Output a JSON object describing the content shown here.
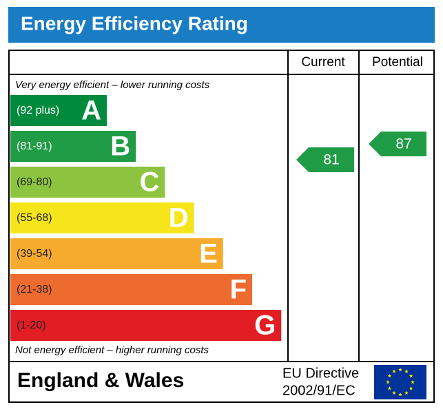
{
  "header": {
    "title": "Energy Efficiency Rating"
  },
  "columns": [
    "Current",
    "Potential"
  ],
  "scale": {
    "top_note": "Very energy efficient - lower running costs",
    "bottom_note": "Not energy efficient - higher running costs",
    "bands": [
      {
        "range": "(92 plus)",
        "letter": "A",
        "color": "#008a3e"
      },
      {
        "range": "(81-91)",
        "letter": "B",
        "color": "#1f9c45"
      },
      {
        "range": "(69-80)",
        "letter": "C",
        "color": "#8cc43f"
      },
      {
        "range": "(55-68)",
        "letter": "D",
        "color": "#f5e51a"
      },
      {
        "range": "(39-54)",
        "letter": "E",
        "color": "#f6ab2e"
      },
      {
        "range": "(21-38)",
        "letter": "F",
        "color": "#ee6b2f"
      },
      {
        "range": "(1-20)",
        "letter": "G",
        "color": "#e21d24"
      }
    ]
  },
  "ratings": {
    "current": 81,
    "potential": 87,
    "color": "#1f9c45"
  },
  "footer": {
    "region": "England & Wales",
    "directive": [
      "EU Directive",
      "2002/91/EC"
    ]
  }
}
